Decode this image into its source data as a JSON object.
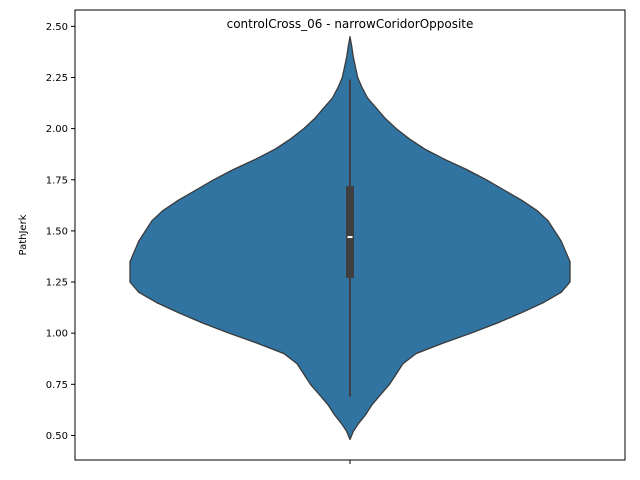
{
  "chart_data": {
    "type": "violin",
    "title": "controlCross_06 - narrowCoridorOpposite",
    "xlabel": "",
    "ylabel": "PathJerk",
    "ylim": [
      0.38,
      2.58
    ],
    "yticks": [
      0.5,
      0.75,
      1.0,
      1.25,
      1.5,
      1.75,
      2.0,
      2.25,
      2.5
    ],
    "ytick_labels": [
      "0.50",
      "0.75",
      "1.00",
      "1.25",
      "1.50",
      "1.75",
      "2.00",
      "2.25",
      "2.50"
    ],
    "grid": false,
    "colors": {
      "fill": "#3274a1",
      "edge": "#3a3a3a",
      "box": "#3f3f3f",
      "median": "#ffffff"
    },
    "violin": {
      "density_profile": [
        [
          0.48,
          0.0
        ],
        [
          0.52,
          0.015
        ],
        [
          0.56,
          0.04
        ],
        [
          0.6,
          0.07
        ],
        [
          0.65,
          0.1
        ],
        [
          0.7,
          0.14
        ],
        [
          0.75,
          0.18
        ],
        [
          0.8,
          0.21
        ],
        [
          0.85,
          0.24
        ],
        [
          0.9,
          0.3
        ],
        [
          0.95,
          0.42
        ],
        [
          1.0,
          0.55
        ],
        [
          1.05,
          0.67
        ],
        [
          1.1,
          0.78
        ],
        [
          1.15,
          0.88
        ],
        [
          1.2,
          0.96
        ],
        [
          1.25,
          1.0
        ],
        [
          1.3,
          1.0
        ],
        [
          1.35,
          1.0
        ],
        [
          1.4,
          0.98
        ],
        [
          1.45,
          0.96
        ],
        [
          1.5,
          0.93
        ],
        [
          1.55,
          0.9
        ],
        [
          1.6,
          0.85
        ],
        [
          1.65,
          0.78
        ],
        [
          1.7,
          0.7
        ],
        [
          1.75,
          0.62
        ],
        [
          1.8,
          0.53
        ],
        [
          1.85,
          0.43
        ],
        [
          1.9,
          0.34
        ],
        [
          1.95,
          0.27
        ],
        [
          2.0,
          0.21
        ],
        [
          2.05,
          0.16
        ],
        [
          2.1,
          0.12
        ],
        [
          2.15,
          0.08
        ],
        [
          2.2,
          0.055
        ],
        [
          2.25,
          0.035
        ],
        [
          2.3,
          0.025
        ],
        [
          2.35,
          0.015
        ],
        [
          2.4,
          0.008
        ],
        [
          2.45,
          0.0
        ]
      ],
      "whisker_low": 0.69,
      "whisker_high": 2.24,
      "q1": 1.27,
      "median": 1.47,
      "q3": 1.72
    }
  }
}
